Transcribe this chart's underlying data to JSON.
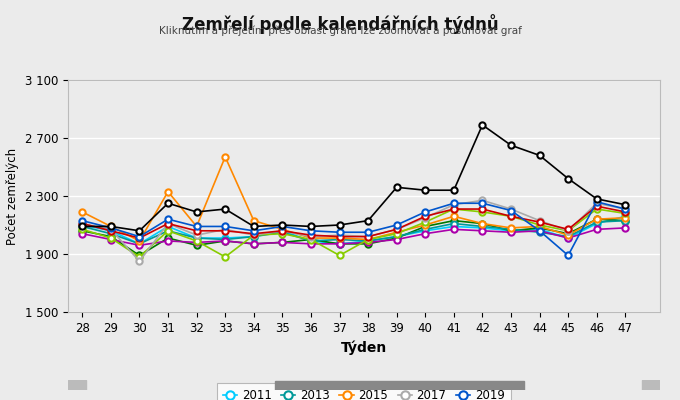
{
  "title": "Zemřelí podle kalendářních týdnů",
  "subtitle": "Kliknutím a přejetím přes oblast grafu lze zoomovat a posunovat graf",
  "xlabel": "Týden",
  "ylabel": "Počet zemřelých",
  "weeks": [
    28,
    29,
    30,
    31,
    32,
    33,
    34,
    35,
    36,
    37,
    38,
    39,
    40,
    41,
    42,
    43,
    44,
    45,
    46,
    47
  ],
  "ylim": [
    1500,
    3100
  ],
  "yticks": [
    1500,
    1900,
    2300,
    2700,
    3100
  ],
  "series": {
    "2011": {
      "color": "#00CCFF",
      "values": [
        2100,
        2060,
        1970,
        2090,
        2010,
        2010,
        2020,
        2060,
        1990,
        1970,
        1990,
        2020,
        2060,
        2090,
        2080,
        2060,
        2070,
        2010,
        2110,
        2160
      ]
    },
    "2012": {
      "color": "#007700",
      "values": [
        2060,
        2020,
        1890,
        2010,
        1960,
        1990,
        1970,
        1980,
        2000,
        1970,
        1970,
        2010,
        2090,
        2130,
        2110,
        2060,
        2080,
        2040,
        2140,
        2130
      ]
    },
    "2013": {
      "color": "#009999",
      "values": [
        2090,
        2040,
        1970,
        2060,
        2010,
        2000,
        2020,
        2050,
        1990,
        2000,
        1990,
        2020,
        2070,
        2110,
        2090,
        2070,
        2050,
        2020,
        2120,
        2130
      ]
    },
    "2014": {
      "color": "#AA00AA",
      "values": [
        2040,
        2000,
        1960,
        1990,
        1980,
        1990,
        1970,
        1980,
        1970,
        1970,
        1980,
        2000,
        2040,
        2070,
        2060,
        2050,
        2060,
        2010,
        2070,
        2080
      ]
    },
    "2015": {
      "color": "#FF8800",
      "values": [
        2190,
        2090,
        1990,
        2330,
        2090,
        2570,
        2130,
        2070,
        2010,
        2010,
        2000,
        2050,
        2100,
        2160,
        2110,
        2080,
        2090,
        2030,
        2140,
        2150
      ]
    },
    "2016": {
      "color": "#88CC00",
      "values": [
        2070,
        2010,
        1880,
        2060,
        1990,
        1880,
        2030,
        2040,
        2000,
        1890,
        2000,
        2040,
        2120,
        2210,
        2190,
        2160,
        2100,
        2060,
        2210,
        2180
      ]
    },
    "2017": {
      "color": "#AAAAAA",
      "values": [
        2110,
        2070,
        1850,
        2110,
        2030,
        2070,
        2030,
        2060,
        2020,
        2030,
        2020,
        2070,
        2150,
        2240,
        2270,
        2210,
        2130,
        2060,
        2250,
        2210
      ]
    },
    "2018": {
      "color": "#CC0000",
      "values": [
        2110,
        2060,
        2010,
        2110,
        2060,
        2060,
        2040,
        2060,
        2030,
        2020,
        2020,
        2070,
        2160,
        2210,
        2210,
        2160,
        2120,
        2070,
        2230,
        2190
      ]
    },
    "2019": {
      "color": "#0055CC",
      "values": [
        2130,
        2080,
        2020,
        2140,
        2090,
        2090,
        2060,
        2090,
        2060,
        2050,
        2050,
        2100,
        2190,
        2250,
        2250,
        2200,
        2060,
        1890,
        2260,
        2210
      ]
    },
    "2020": {
      "color": "#000000",
      "values": [
        2090,
        2090,
        2060,
        2250,
        2190,
        2210,
        2090,
        2100,
        2090,
        2100,
        2130,
        2360,
        2340,
        2340,
        2790,
        2650,
        2580,
        2420,
        2280,
        2240
      ]
    }
  },
  "background_color": "#ebebeb",
  "plot_background": "#ebebeb",
  "grid_color": "#ffffff"
}
